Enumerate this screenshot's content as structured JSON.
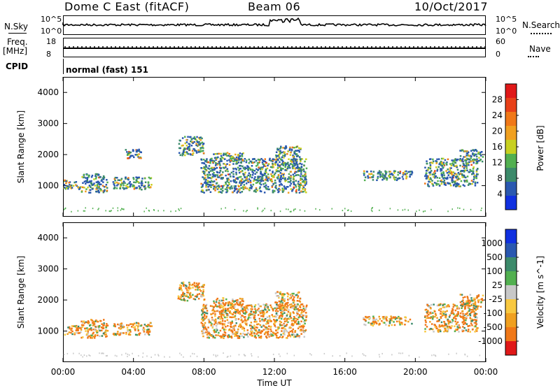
{
  "header": {
    "station": "Dome C East (fitACF)",
    "beam": "Beam 06",
    "date": "10/Oct/2017"
  },
  "top_panels": {
    "nsky_label": "N.Sky",
    "nsearch_label": "N.Search",
    "nsky_ticks": [
      "10^5",
      "10^0"
    ],
    "nsky_right_ticks": [
      "10^5",
      "10^0"
    ],
    "freq_label_1": "Freq.",
    "freq_label_2": "[MHz]",
    "freq_ticks": [
      "18",
      "8"
    ],
    "nave_ticks": [
      "60",
      "0"
    ],
    "nave_label": "Nave",
    "cpid_label": "CPID",
    "cpid_value": "normal (fast) 151"
  },
  "colors": {
    "power": [
      "#1030e0",
      "#2a58b0",
      "#3c8a6a",
      "#52b050",
      "#c8d020",
      "#f0a020",
      "#f07818",
      "#e84018",
      "#e01818"
    ],
    "velocity": [
      "#e01818",
      "#f07818",
      "#f0a020",
      "#f8c840",
      "#c8c8c8",
      "#52b050",
      "#3c8a6a",
      "#2a58b0",
      "#1030e0"
    ]
  },
  "chart_data": [
    {
      "type": "heatmap",
      "panel": "power",
      "ylabel": "Slant Range [km]",
      "yticks": [
        "4000",
        "3000",
        "2000",
        "1000"
      ],
      "ylim": [
        0,
        4500
      ],
      "colorbar_label": "Power [dB]",
      "colorbar_ticks": [
        "28",
        "24",
        "20",
        "16",
        "12",
        "8",
        "4"
      ],
      "clim": [
        0,
        30
      ],
      "echo_regions_hours_km": [
        [
          0.0,
          1.0,
          900,
          1200
        ],
        [
          1.0,
          2.5,
          800,
          1400
        ],
        [
          2.8,
          5.0,
          900,
          1300
        ],
        [
          3.5,
          4.5,
          1900,
          2200
        ],
        [
          6.5,
          8.0,
          2000,
          2600
        ],
        [
          7.8,
          13.8,
          800,
          1900
        ],
        [
          8.5,
          10.2,
          1800,
          2100
        ],
        [
          12.0,
          13.5,
          1700,
          2300
        ],
        [
          17.0,
          19.8,
          1200,
          1500
        ],
        [
          20.5,
          23.5,
          1000,
          1900
        ],
        [
          22.5,
          23.8,
          1800,
          2200
        ]
      ]
    },
    {
      "type": "heatmap",
      "panel": "velocity",
      "ylabel": "Slant Range [km]",
      "yticks": [
        "4000",
        "3000",
        "2000",
        "1000"
      ],
      "ylim": [
        0,
        4500
      ],
      "colorbar_label": "Velocity [m s^-1]",
      "colorbar_ticks": [
        "1000",
        "500",
        "100",
        "25",
        "-25",
        "-100",
        "-500",
        "-1000"
      ],
      "clim": [
        -1000,
        1000
      ],
      "echo_regions_hours_km": [
        [
          0.0,
          1.0,
          900,
          1200
        ],
        [
          1.0,
          2.5,
          800,
          1400
        ],
        [
          2.8,
          5.0,
          900,
          1300
        ],
        [
          6.5,
          8.0,
          2000,
          2600
        ],
        [
          7.8,
          13.8,
          800,
          1900
        ],
        [
          8.5,
          10.2,
          1800,
          2100
        ],
        [
          12.0,
          13.5,
          1700,
          2300
        ],
        [
          17.0,
          19.8,
          1200,
          1500
        ],
        [
          20.5,
          23.5,
          1000,
          1900
        ],
        [
          22.5,
          23.8,
          1800,
          2200
        ]
      ]
    }
  ],
  "xaxis": {
    "label": "Time UT",
    "ticks": [
      "00:00",
      "04:00",
      "08:00",
      "12:00",
      "16:00",
      "20:00",
      "00:00"
    ],
    "xlim_hours": [
      0,
      24
    ]
  }
}
